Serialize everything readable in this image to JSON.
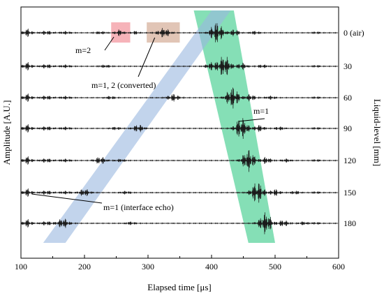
{
  "chart_data": {
    "type": "line",
    "xlabel": "Elapsed time [μs]",
    "ylabel_left": "Amplitude [A.U.]",
    "ylabel_right": "Liquid-level [mm]",
    "xlim": [
      100,
      600
    ],
    "x_ticks": [
      100,
      200,
      300,
      400,
      500,
      600
    ],
    "grid": false,
    "series": [
      {
        "name": "0 (air)",
        "liquid_level_mm": 0
      },
      {
        "name": "30",
        "liquid_level_mm": 30
      },
      {
        "name": "60",
        "liquid_level_mm": 60
      },
      {
        "name": "90",
        "liquid_level_mm": 90
      },
      {
        "name": "120",
        "liquid_level_mm": 120
      },
      {
        "name": "150",
        "liquid_level_mm": 150
      },
      {
        "name": "180",
        "liquid_level_mm": 180
      }
    ],
    "m1_echo_time_us": [
      408,
      420,
      433,
      447,
      458,
      472,
      485
    ],
    "interface_echo_time_us": [
      null,
      400,
      340,
      285,
      225,
      200,
      165
    ],
    "highlight_bands": [
      {
        "name": "m=1",
        "color": "#5cd49e",
        "from_top_x": [
          372,
          435
        ],
        "to_bottom_x": [
          458,
          500
        ]
      },
      {
        "name": "m=1 (interface echo)",
        "color": "#9ab8df",
        "from_top_x": [
          400,
          430
        ],
        "to_bottom_x": [
          135,
          170
        ]
      }
    ],
    "highlight_boxes": [
      {
        "name": "m=2",
        "color": "#f4a0a8",
        "x_range": [
          242,
          272
        ]
      },
      {
        "name": "m=1, 2 (converted)",
        "color": "#d9b7a4",
        "x_range": [
          298,
          350
        ]
      }
    ],
    "annotations": [
      {
        "text": "m=2",
        "target_time_us": 255
      },
      {
        "text": "m=1, 2 (converted)",
        "target_time_us": 315
      },
      {
        "text": "m=1",
        "target_time_us": 447
      },
      {
        "text": "m=1 (interface echo)",
        "target_time_us": 195
      }
    ]
  }
}
